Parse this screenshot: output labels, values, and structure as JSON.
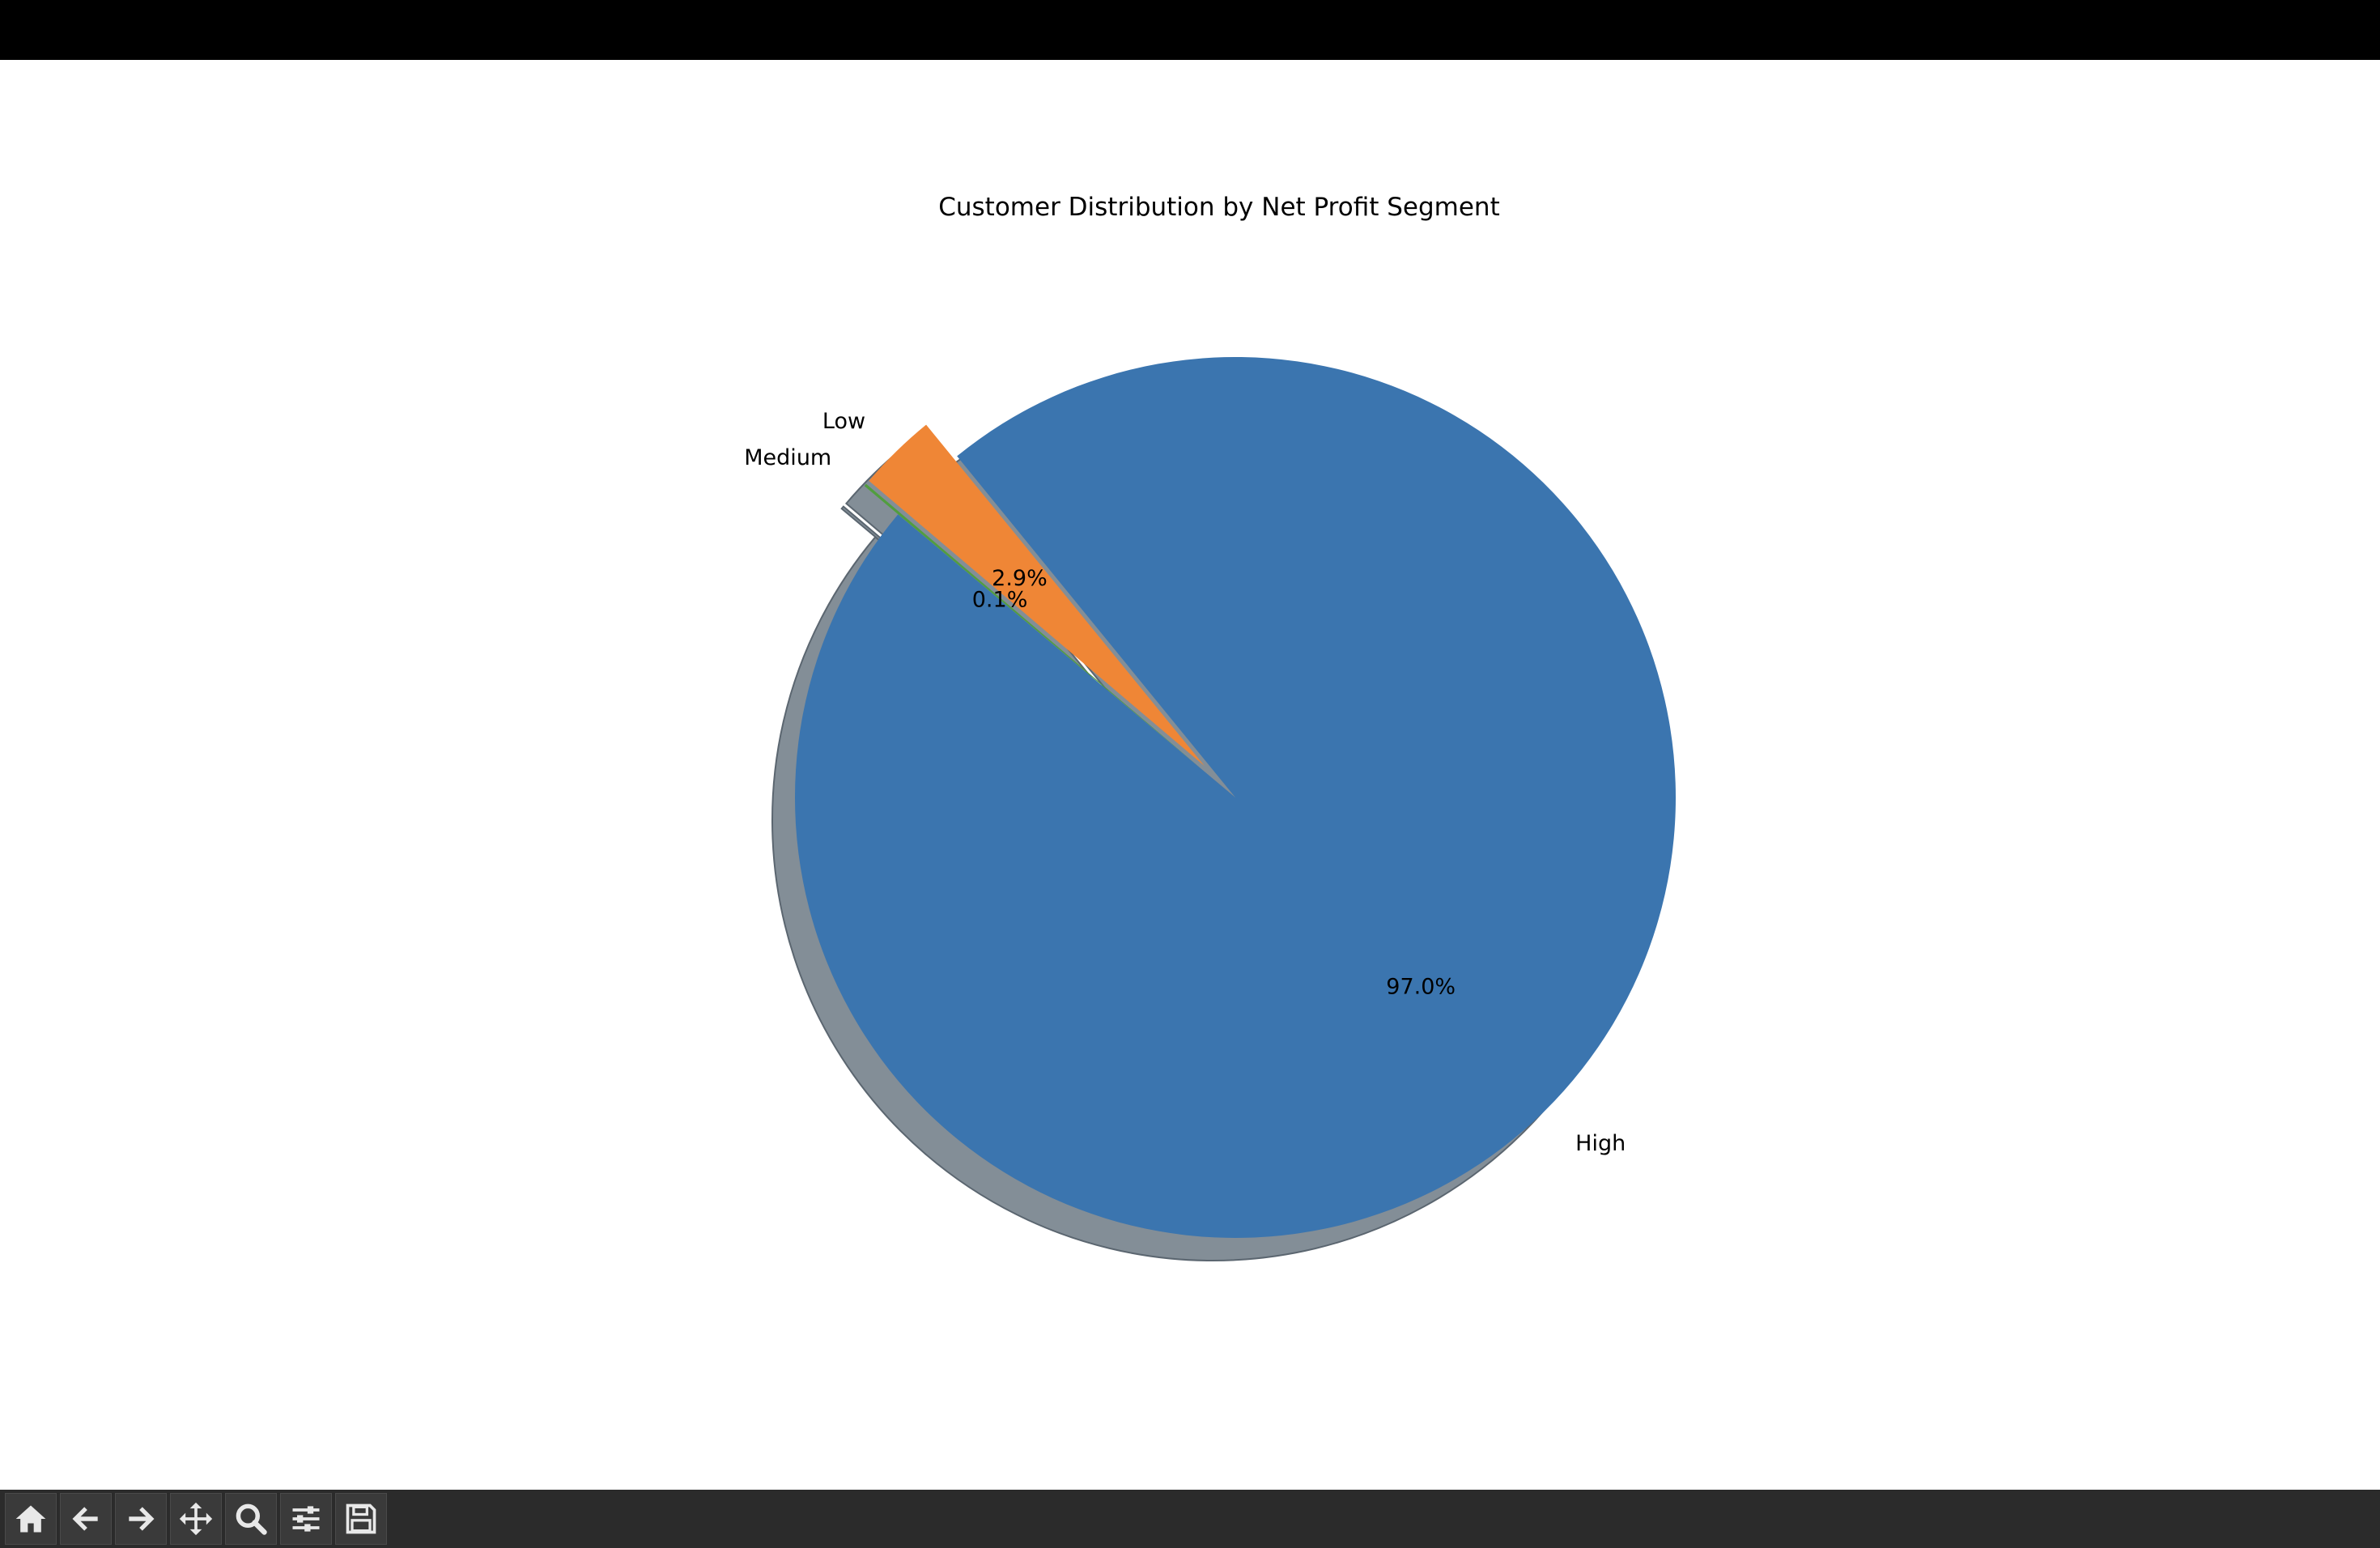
{
  "chart_data": {
    "type": "pie",
    "title": "Customer Distribution by Net Profit Segment",
    "slices": [
      {
        "label": "High",
        "percent": 97.0,
        "percent_label": "97.0%",
        "color": "#3b75af",
        "explode": 0
      },
      {
        "label": "Low",
        "percent": 2.9,
        "percent_label": "2.9%",
        "color": "#ef8636",
        "explode": 0.1
      },
      {
        "label": "Medium",
        "percent": 0.1,
        "percent_label": "0.1%",
        "color": "#519e3e",
        "explode": 0.1
      }
    ],
    "start_angle_deg": 140,
    "shadow": true
  },
  "toolbar": {
    "buttons": [
      {
        "name": "home-button",
        "icon": "home-icon"
      },
      {
        "name": "back-button",
        "icon": "arrow-left-icon"
      },
      {
        "name": "forward-button",
        "icon": "arrow-right-icon"
      },
      {
        "name": "pan-button",
        "icon": "move-icon"
      },
      {
        "name": "zoom-button",
        "icon": "magnifier-icon"
      },
      {
        "name": "configure-subplots-button",
        "icon": "sliders-icon"
      },
      {
        "name": "save-button",
        "icon": "floppy-disk-icon"
      }
    ]
  },
  "colors": {
    "shadow": "#838e97",
    "shadow_edge": "#5b6670",
    "toolbar_bg": "#2b2b2b"
  }
}
